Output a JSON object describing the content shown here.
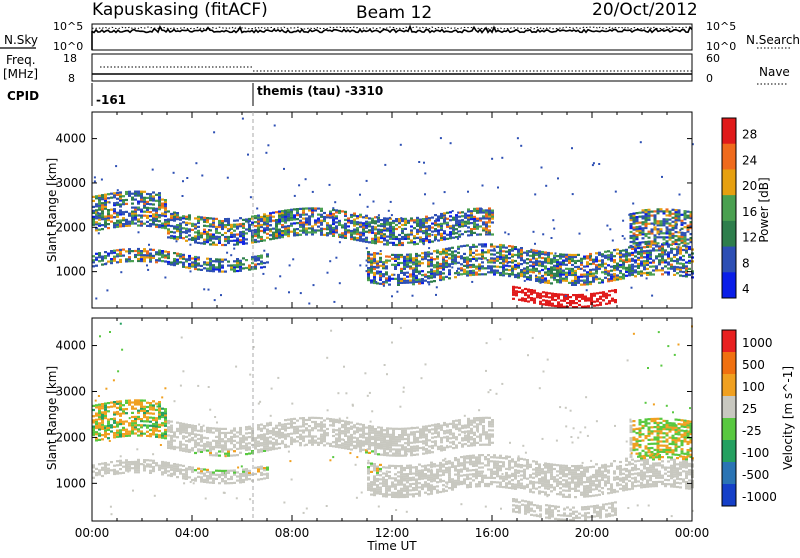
{
  "header": {
    "station": "Kapuskasing (fitACF)",
    "beam": "Beam 12",
    "date": "20/Oct/2012"
  },
  "top_panels": {
    "nsky_label": "N.Sky",
    "nsearch_label": "N.Search",
    "noise_ticks_left": [
      "10^5",
      "10^0"
    ],
    "noise_ticks_right": [
      "10^5",
      "10^0"
    ],
    "freq_label": "Freq.",
    "freq_unit": "[MHz]",
    "freq_ticks": [
      "18",
      "8"
    ],
    "nave_label": "Nave",
    "nave_ticks": [
      "60",
      "0"
    ],
    "cpid_label": "CPID",
    "cpid_values": [
      "-161",
      "themis (tau) -3310"
    ]
  },
  "chart_data": [
    {
      "type": "heatmap",
      "panel": "power",
      "ylabel": "Slant Range [km]",
      "ylim": [
        180,
        4600
      ],
      "yticks": [
        "1000",
        "2000",
        "3000",
        "4000"
      ],
      "colorbar_label": "Power [dB]",
      "colorbar_ticks": [
        "28",
        "24",
        "20",
        "16",
        "12",
        "8",
        "4"
      ],
      "colors": [
        "#0a1ee8",
        "#2d4fb4",
        "#2e7e4c",
        "#4aa050",
        "#e6a010",
        "#ef6a1c",
        "#e01a1a"
      ],
      "cpid_change_time": "06:30",
      "echo_bands": [
        {
          "t": [
            0.0,
            2.9
          ],
          "range": [
            1900,
            2700
          ],
          "level": "mixed",
          "desc": "early high-range scatter"
        },
        {
          "t": [
            0.0,
            7.0
          ],
          "range": [
            1100,
            1400
          ],
          "level": "mixed"
        },
        {
          "t": [
            3.0,
            16.0
          ],
          "range": [
            1700,
            2300
          ],
          "level": "mixed"
        },
        {
          "t": [
            11.0,
            24.0
          ],
          "range": [
            800,
            1500
          ],
          "level": "mixed"
        },
        {
          "t": [
            16.8,
            21.0
          ],
          "range": [
            300,
            600
          ],
          "level": "high"
        },
        {
          "t": [
            21.5,
            24.0
          ],
          "range": [
            1500,
            2300
          ],
          "level": "mixed"
        }
      ]
    },
    {
      "type": "heatmap",
      "panel": "velocity",
      "ylabel": "Slant Range [km]",
      "ylim": [
        180,
        4600
      ],
      "yticks": [
        "1000",
        "2000",
        "3000",
        "4000"
      ],
      "colorbar_label": "Velocity [m s^-1]",
      "colorbar_ticks": [
        "1000",
        "500",
        "100",
        "25",
        "-25",
        "-100",
        "-500",
        "-1000"
      ],
      "colors": [
        "#1540c8",
        "#2a74b4",
        "#24a060",
        "#58c840",
        "#c8c8c0",
        "#f0a020",
        "#f07010",
        "#e82020"
      ],
      "xlabel": "Time UT",
      "xticks": [
        "00:00",
        "04:00",
        "08:00",
        "12:00",
        "16:00",
        "20:00",
        "00:00"
      ],
      "xlim": [
        "00:00",
        "24:00"
      ]
    }
  ]
}
